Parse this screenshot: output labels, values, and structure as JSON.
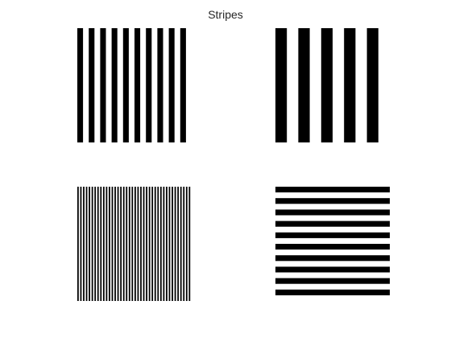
{
  "figure": {
    "title": "Stripes",
    "foreground_color": "#000000",
    "background_color": "#ffffff"
  },
  "panels": [
    {
      "id": "top-left",
      "orientation": "vertical",
      "stripe_count": 10
    },
    {
      "id": "top-right",
      "orientation": "vertical",
      "stripe_count": 5
    },
    {
      "id": "bottom-left",
      "orientation": "vertical",
      "stripe_count": 40
    },
    {
      "id": "bottom-right",
      "orientation": "horizontal",
      "stripe_count": 10
    }
  ]
}
